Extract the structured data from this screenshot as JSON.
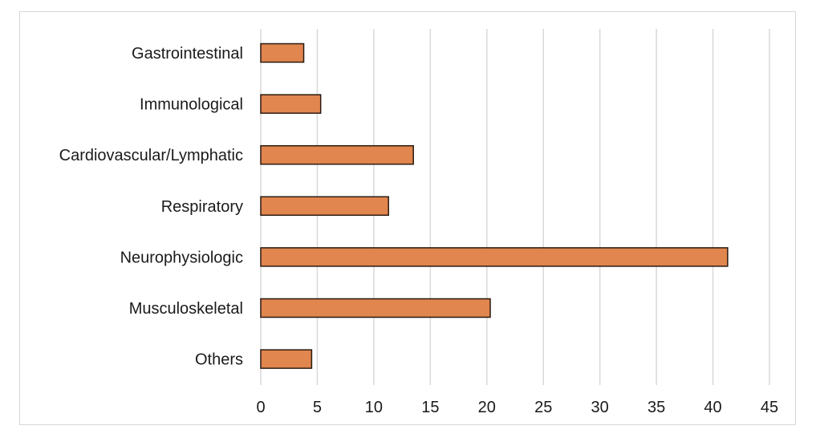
{
  "chart_data": {
    "type": "bar",
    "orientation": "horizontal",
    "title": "",
    "xlabel": "",
    "ylabel": "",
    "categories": [
      "Gastrointestinal",
      "Immunological",
      "Cardiovascular/Lymphatic",
      "Respiratory",
      "Neurophysiologic",
      "Musculoskeletal",
      "Others"
    ],
    "values": [
      3.8,
      5.3,
      13.5,
      11.3,
      41.3,
      20.3,
      4.5
    ],
    "xlim": [
      0,
      45
    ],
    "xticks": [
      0,
      5,
      10,
      15,
      20,
      25,
      30,
      35,
      40,
      45
    ],
    "grid": true,
    "legend": "none",
    "colors": {
      "bar_fill": "#e0864e",
      "bar_stroke": "#2b1a10"
    }
  }
}
